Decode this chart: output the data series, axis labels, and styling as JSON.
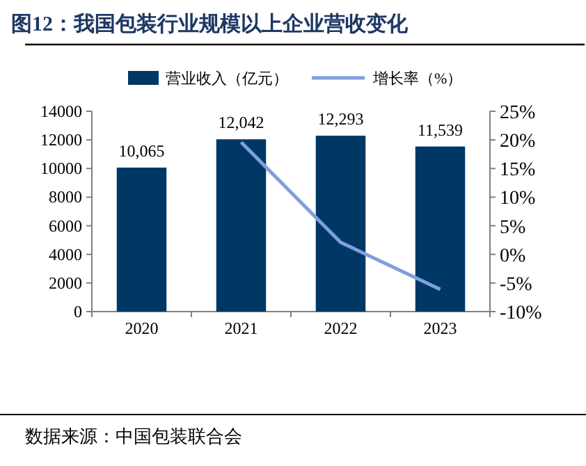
{
  "chart_data": {
    "type": "bar",
    "title": "图12：我国包装行业规模以上企业营收变化",
    "annotations": [
      "数据来源：中国包装联合会"
    ],
    "categories": [
      "2020",
      "2021",
      "2022",
      "2023"
    ],
    "series": [
      {
        "name": "营业收入（亿元）",
        "color": "#003865",
        "values": [
          10065,
          12042,
          12293,
          11539
        ],
        "value_labels": [
          "10,065",
          "12,042",
          "12,293",
          "11,539"
        ]
      },
      {
        "name": "增长率（%）",
        "type": "line",
        "axis": "y2",
        "color": "#7f9fdc",
        "values": [
          null,
          19.6,
          2.1,
          -6.1
        ]
      }
    ],
    "ylim": [
      0,
      14000
    ],
    "yticks": [
      0,
      2000,
      4000,
      6000,
      8000,
      10000,
      12000,
      14000
    ],
    "y2lim": [
      -10,
      25
    ],
    "y2ticks": [
      {
        "value": -10,
        "label": "-10%"
      },
      {
        "value": -5,
        "label": "-5%"
      },
      {
        "value": 0,
        "label": "0%"
      },
      {
        "value": 5,
        "label": "5%"
      },
      {
        "value": 10,
        "label": "10%"
      },
      {
        "value": 15,
        "label": "15%"
      },
      {
        "value": 20,
        "label": "20%"
      },
      {
        "value": 25,
        "label": "25%"
      }
    ],
    "legend": "top",
    "grid": false
  }
}
